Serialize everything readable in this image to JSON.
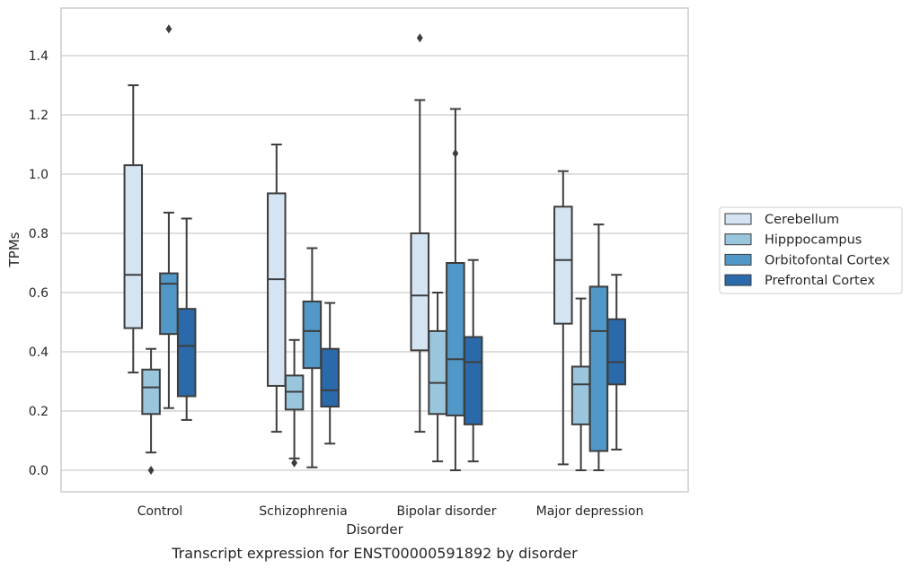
{
  "chart_data": {
    "type": "box",
    "xlabel": "Disorder",
    "ylabel": "TPMs",
    "caption": "Transcript expression for ENST00000591892 by disorder",
    "ylim": [
      -0.07,
      1.57
    ],
    "yticks": [
      "0.0",
      "0.2",
      "0.4",
      "0.6",
      "0.8",
      "1.0",
      "1.2",
      "1.4"
    ],
    "ytick_values": [
      0.0,
      0.2,
      0.4,
      0.6,
      0.8,
      1.0,
      1.2,
      1.4
    ],
    "grid": "horizontal",
    "legend_position": "right",
    "categories": [
      "Control",
      "Schizophrenia",
      "Bipolar disorder",
      "Major depression"
    ],
    "series": [
      {
        "name": "Cerebellum",
        "color": "#d4e4f2",
        "boxes": [
          {
            "whisker_low": 0.33,
            "q1": 0.48,
            "median": 0.66,
            "q3": 1.03,
            "whisker_high": 1.3,
            "outliers": []
          },
          {
            "whisker_low": 0.13,
            "q1": 0.285,
            "median": 0.645,
            "q3": 0.935,
            "whisker_high": 1.1,
            "outliers": []
          },
          {
            "whisker_low": 0.13,
            "q1": 0.405,
            "median": 0.59,
            "q3": 0.8,
            "whisker_high": 1.25,
            "outliers": [
              1.46
            ]
          },
          {
            "whisker_low": 0.02,
            "q1": 0.495,
            "median": 0.71,
            "q3": 0.89,
            "whisker_high": 1.01,
            "outliers": []
          }
        ]
      },
      {
        "name": "Hipppocampus",
        "color": "#9ac6dd",
        "boxes": [
          {
            "whisker_low": 0.06,
            "q1": 0.19,
            "median": 0.28,
            "q3": 0.34,
            "whisker_high": 0.41,
            "outliers": [
              0.0
            ]
          },
          {
            "whisker_low": 0.04,
            "q1": 0.205,
            "median": 0.265,
            "q3": 0.32,
            "whisker_high": 0.44,
            "outliers": [
              0.025
            ]
          },
          {
            "whisker_low": 0.03,
            "q1": 0.19,
            "median": 0.295,
            "q3": 0.47,
            "whisker_high": 0.6,
            "outliers": []
          },
          {
            "whisker_low": 0.0,
            "q1": 0.155,
            "median": 0.29,
            "q3": 0.35,
            "whisker_high": 0.58,
            "outliers": []
          }
        ]
      },
      {
        "name": "Orbitofontal Cortex",
        "color": "#5197c7",
        "boxes": [
          {
            "whisker_low": 0.21,
            "q1": 0.46,
            "median": 0.63,
            "q3": 0.665,
            "whisker_high": 0.87,
            "outliers": [
              1.49
            ]
          },
          {
            "whisker_low": 0.01,
            "q1": 0.345,
            "median": 0.47,
            "q3": 0.57,
            "whisker_high": 0.75,
            "outliers": []
          },
          {
            "whisker_low": 0.0,
            "q1": 0.185,
            "median": 0.375,
            "q3": 0.7,
            "whisker_high": 1.22,
            "outliers": [
              1.07
            ]
          },
          {
            "whisker_low": 0.0,
            "q1": 0.065,
            "median": 0.47,
            "q3": 0.62,
            "whisker_high": 0.83,
            "outliers": []
          }
        ]
      },
      {
        "name": "Prefrontal Cortex",
        "color": "#2a6aaa",
        "boxes": [
          {
            "whisker_low": 0.17,
            "q1": 0.25,
            "median": 0.42,
            "q3": 0.545,
            "whisker_high": 0.85,
            "outliers": []
          },
          {
            "whisker_low": 0.09,
            "q1": 0.215,
            "median": 0.27,
            "q3": 0.41,
            "whisker_high": 0.565,
            "outliers": []
          },
          {
            "whisker_low": 0.03,
            "q1": 0.155,
            "median": 0.365,
            "q3": 0.45,
            "whisker_high": 0.71,
            "outliers": []
          },
          {
            "whisker_low": 0.07,
            "q1": 0.29,
            "median": 0.365,
            "q3": 0.51,
            "whisker_high": 0.66,
            "outliers": []
          }
        ]
      }
    ]
  }
}
